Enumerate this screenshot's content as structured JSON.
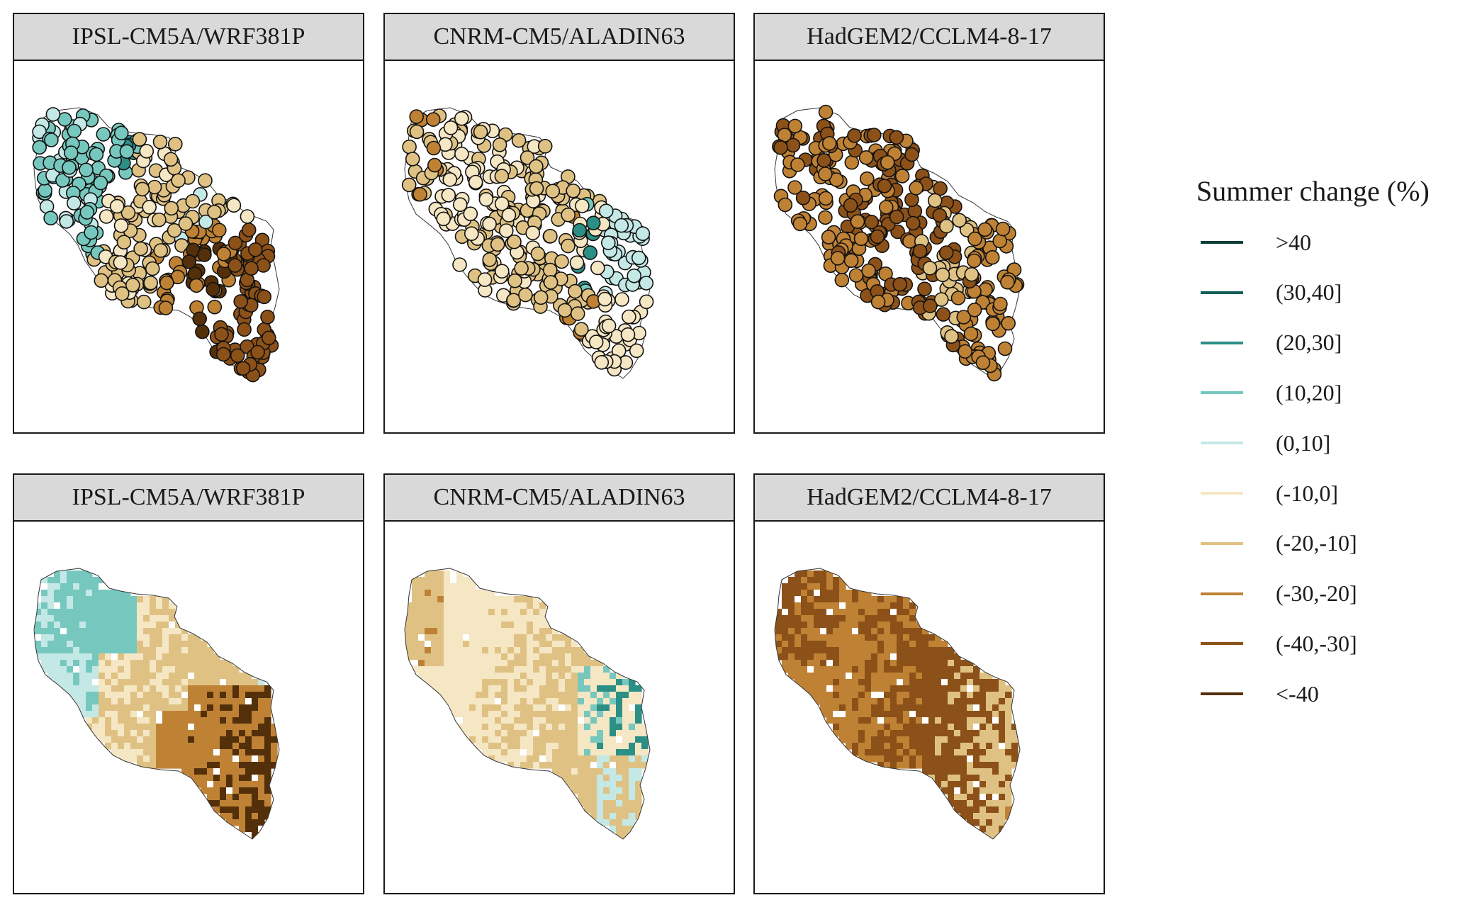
{
  "panels": [
    {
      "label": "IPSL-CM5A/WRF381P",
      "view": "stations"
    },
    {
      "label": "CNRM-CM5/ALADIN63",
      "view": "stations"
    },
    {
      "label": "HadGEM2/CCLM4-8-17",
      "view": "stations"
    },
    {
      "label": "IPSL-CM5A/WRF381P",
      "view": "catchments"
    },
    {
      "label": "CNRM-CM5/ALADIN63",
      "view": "catchments"
    },
    {
      "label": "HadGEM2/CCLM4-8-17",
      "view": "catchments"
    }
  ],
  "legend": {
    "title": "Summer change (%)",
    "classes": [
      {
        "label": ">40",
        "color": "#0b3d3a"
      },
      {
        "label": "(30,40]",
        "color": "#115f58"
      },
      {
        "label": "(20,30]",
        "color": "#2b8f86"
      },
      {
        "label": "(10,20]",
        "color": "#76c8be"
      },
      {
        "label": "(0,10]",
        "color": "#c4e8e6"
      },
      {
        "label": "(-10,0]",
        "color": "#f5e6c4"
      },
      {
        "label": "(-20,-10]",
        "color": "#dfc283"
      },
      {
        "label": "(-30,-20]",
        "color": "#bf8235"
      },
      {
        "label": "(-40,-30]",
        "color": "#8c5118"
      },
      {
        "label": "<-40",
        "color": "#54300a"
      }
    ]
  }
}
